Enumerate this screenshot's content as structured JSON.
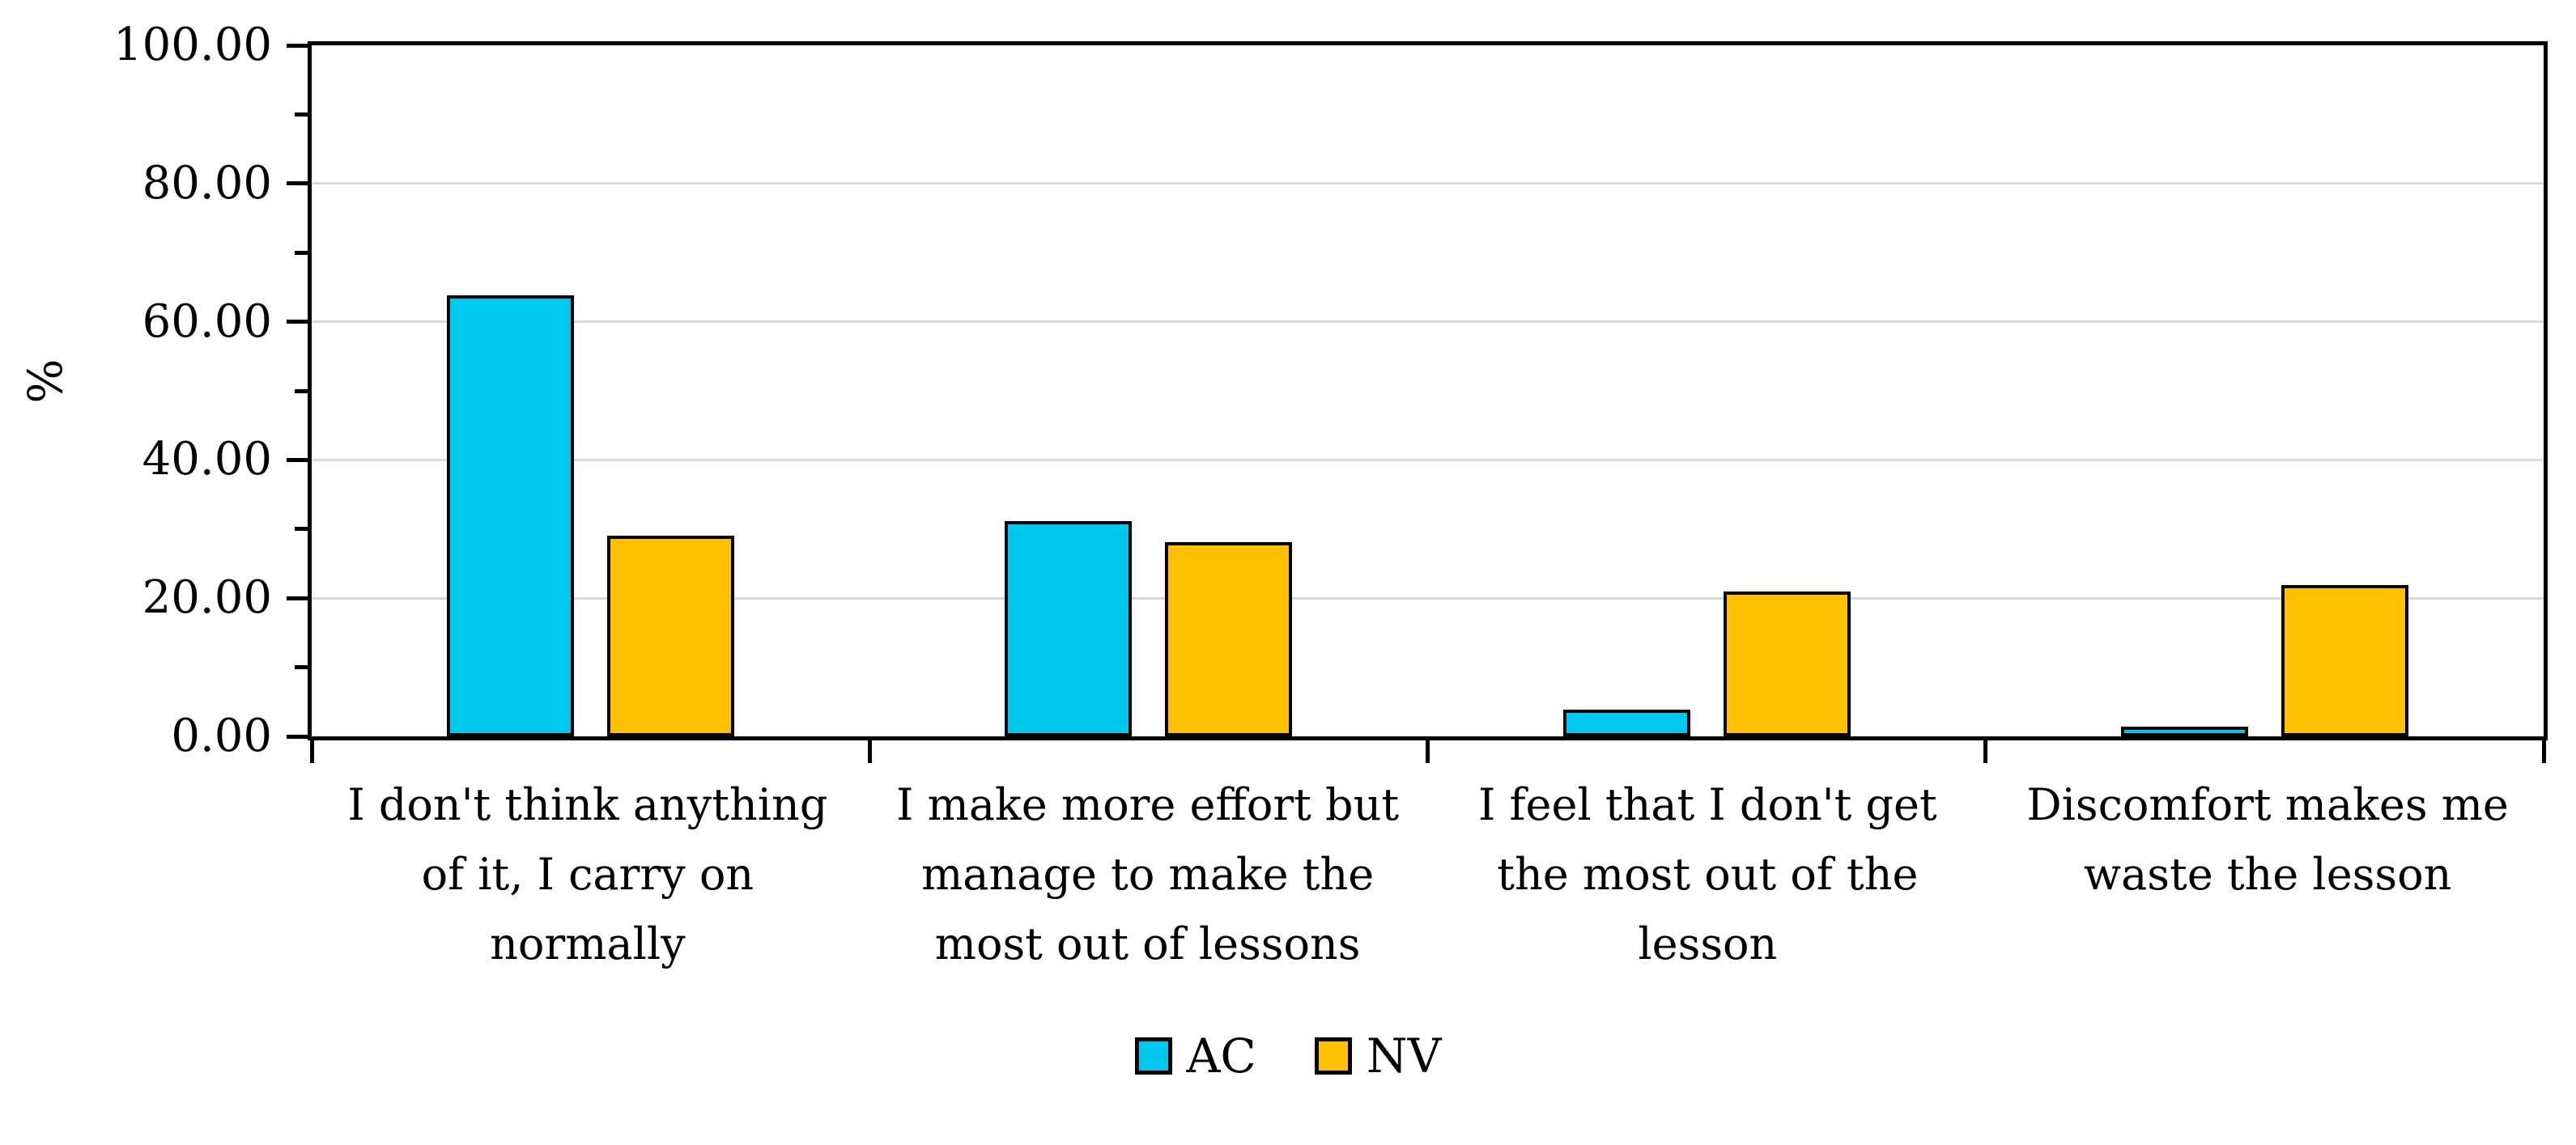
{
  "chart_data": {
    "type": "bar",
    "title": "",
    "xlabel": "",
    "ylabel": "%",
    "ylim": [
      0,
      100
    ],
    "y_major_step": 20,
    "y_minor_step": 10,
    "y_tick_labels": [
      "0.00",
      "20.00",
      "40.00",
      "60.00",
      "80.00",
      "100.00"
    ],
    "grid": "horizontal-major-only",
    "gridline_color": "#D9D9D9",
    "axis_color": "#000000",
    "plot_border": "full-box",
    "legend_position": "bottom-center",
    "categories": [
      "I don't think anything of it, I carry on normally",
      "I make more effort but manage to make the most out of lessons",
      "I feel that I don't get the most out of the lesson",
      "Discomfort makes me waste the lesson"
    ],
    "category_label_lines": [
      "I don't think anything\nof it, I carry on\nnormally",
      "I make more effort but\nmanage to make the\nmost out of lessons",
      "I feel that I don't get\nthe most out of the\nlesson",
      "Discomfort makes me\nwaste the lesson"
    ],
    "series": [
      {
        "name": "AC",
        "color": "#00C9F0",
        "values": [
          63.8,
          31.2,
          3.9,
          1.4
        ]
      },
      {
        "name": "NV",
        "color": "#FFC000",
        "values": [
          29.0,
          28.1,
          21.0,
          21.9
        ]
      }
    ]
  }
}
